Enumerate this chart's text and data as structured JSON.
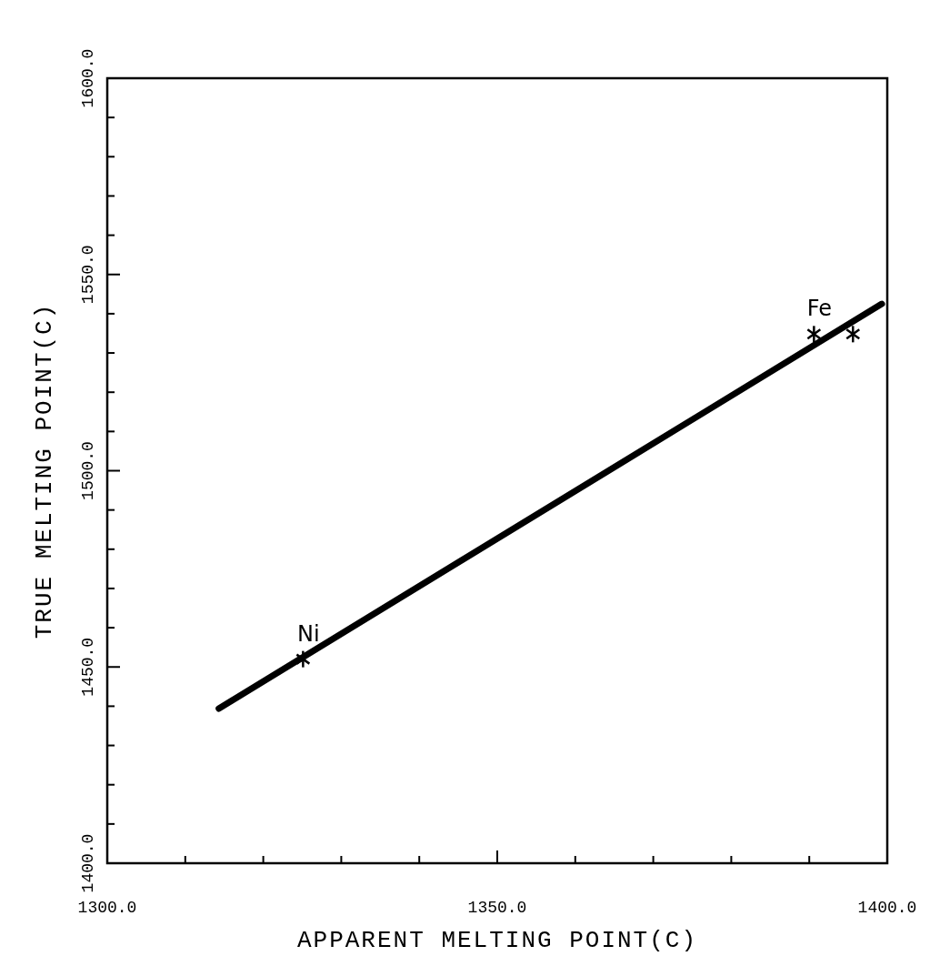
{
  "chart_data": {
    "type": "scatter",
    "xlabel": "APPARENT MELTING POINT(C)",
    "ylabel": "TRUE MELTING POINT(C)",
    "xlim": [
      1300,
      1400
    ],
    "ylim": [
      1400,
      1600
    ],
    "xticks": [
      {
        "value": 1300,
        "label": "1300.0"
      },
      {
        "value": 1310,
        "label": null
      },
      {
        "value": 1320,
        "label": null
      },
      {
        "value": 1330,
        "label": null
      },
      {
        "value": 1340,
        "label": null
      },
      {
        "value": 1350,
        "label": "1350.0"
      },
      {
        "value": 1360,
        "label": null
      },
      {
        "value": 1370,
        "label": null
      },
      {
        "value": 1380,
        "label": null
      },
      {
        "value": 1390,
        "label": null
      },
      {
        "value": 1400,
        "label": "1400.0"
      }
    ],
    "yticks": [
      {
        "value": 1400,
        "label": "1400.0"
      },
      {
        "value": 1410,
        "label": null
      },
      {
        "value": 1420,
        "label": null
      },
      {
        "value": 1430,
        "label": null
      },
      {
        "value": 1440,
        "label": null
      },
      {
        "value": 1450,
        "label": "1450.0"
      },
      {
        "value": 1460,
        "label": null
      },
      {
        "value": 1470,
        "label": null
      },
      {
        "value": 1480,
        "label": null
      },
      {
        "value": 1490,
        "label": null
      },
      {
        "value": 1500,
        "label": "1500.0"
      },
      {
        "value": 1510,
        "label": null
      },
      {
        "value": 1520,
        "label": null
      },
      {
        "value": 1530,
        "label": null
      },
      {
        "value": 1540,
        "label": null
      },
      {
        "value": 1550,
        "label": "1550.0"
      },
      {
        "value": 1560,
        "label": null
      },
      {
        "value": 1570,
        "label": null
      },
      {
        "value": 1580,
        "label": null
      },
      {
        "value": 1590,
        "label": null
      },
      {
        "value": 1600,
        "label": "1600.0"
      }
    ],
    "series": [
      {
        "type": "line",
        "color": "#000000",
        "x": [
          1314.3,
          1399.3
        ],
        "values": [
          1439.4,
          1542.5
        ],
        "marker": "none"
      },
      {
        "type": "scatter",
        "color": "#000000",
        "x": [
          1325.1,
          1390.6,
          1395.6
        ],
        "values": [
          1452.0,
          1534.8,
          1534.8
        ],
        "marker": "cross"
      }
    ],
    "annotations": [
      {
        "text": "Ni",
        "x": 1325.1,
        "y": 1452.0
      },
      {
        "text": "Fe",
        "x": 1390.6,
        "y": 1534.8
      }
    ],
    "grid": false
  }
}
